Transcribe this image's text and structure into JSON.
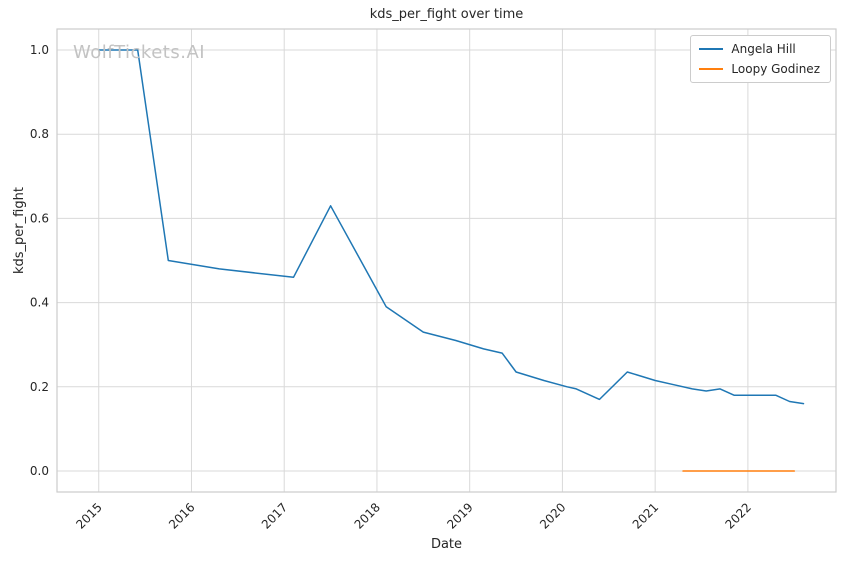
{
  "title": "kds_per_fight over time",
  "watermark": "WolfTickets.AI",
  "axes": {
    "xlabel": "Date",
    "ylabel": "kds_per_fight"
  },
  "legend": {
    "items": [
      {
        "label": "Angela Hill",
        "color": "#1f77b4"
      },
      {
        "label": "Loopy Godinez",
        "color": "#ff7f0e"
      }
    ]
  },
  "chart_data": {
    "type": "line",
    "title": "kds_per_fight over time",
    "xlabel": "Date",
    "ylabel": "kds_per_fight",
    "xlim": [
      2014.55,
      2022.95
    ],
    "ylim": [
      -0.05,
      1.05
    ],
    "xticks": [
      2015,
      2016,
      2017,
      2018,
      2019,
      2020,
      2021,
      2022
    ],
    "yticks": [
      0.0,
      0.2,
      0.4,
      0.6,
      0.8,
      1.0
    ],
    "grid": true,
    "legend_position": "upper right",
    "series": [
      {
        "name": "Angela Hill",
        "color": "#1f77b4",
        "x": [
          2015.0,
          2015.42,
          2015.75,
          2016.3,
          2017.1,
          2017.5,
          2018.1,
          2018.5,
          2018.85,
          2019.15,
          2019.35,
          2019.5,
          2019.8,
          2020.05,
          2020.15,
          2020.4,
          2020.7,
          2021.0,
          2021.2,
          2021.4,
          2021.55,
          2021.7,
          2021.85,
          2022.1,
          2022.3,
          2022.45,
          2022.6
        ],
        "y": [
          1.0,
          1.0,
          0.5,
          0.48,
          0.46,
          0.63,
          0.39,
          0.33,
          0.31,
          0.29,
          0.28,
          0.235,
          0.215,
          0.2,
          0.195,
          0.17,
          0.235,
          0.215,
          0.205,
          0.195,
          0.19,
          0.195,
          0.18,
          0.18,
          0.18,
          0.165,
          0.16
        ]
      },
      {
        "name": "Loopy Godinez",
        "color": "#ff7f0e",
        "x": [
          2021.3,
          2021.9,
          2022.5
        ],
        "y": [
          0.0,
          0.0,
          0.0
        ]
      }
    ]
  }
}
